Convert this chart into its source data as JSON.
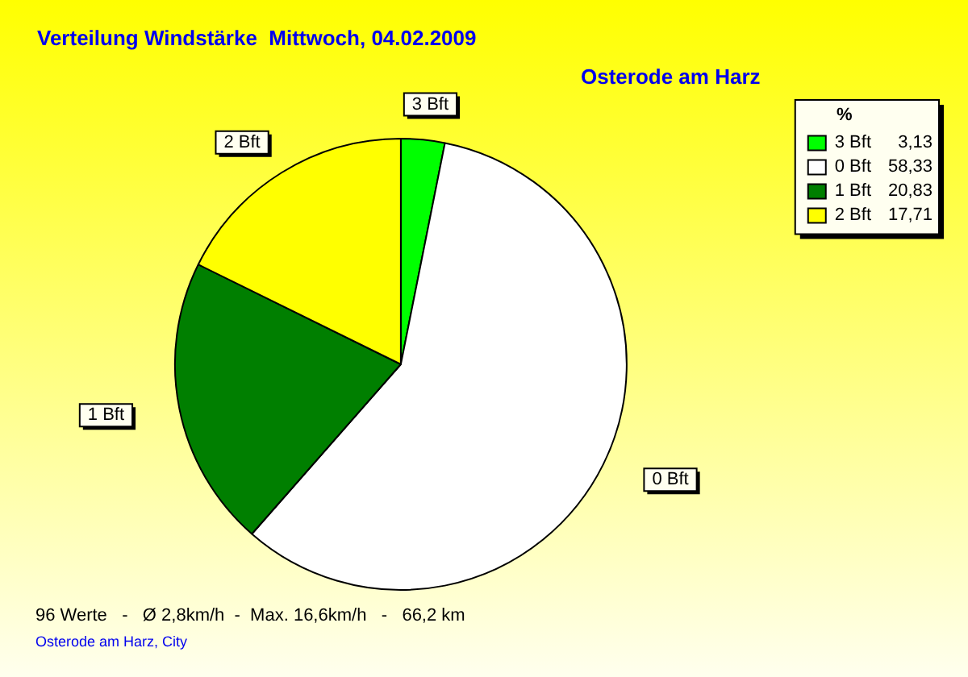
{
  "chart_data": {
    "type": "pie",
    "title": "Verteilung Windstärke  Mittwoch, 04.02.2009",
    "subtitle": "Osterode am Harz",
    "categories": [
      "3 Bft",
      "0 Bft",
      "1 Bft",
      "2 Bft"
    ],
    "values": [
      3.13,
      58.33,
      20.83,
      17.71
    ],
    "colors": [
      "#00ff00",
      "#ffffff",
      "#007f00",
      "#ffff00"
    ],
    "value_labels": [
      "3,13",
      "58,33",
      "20,83",
      "17,71"
    ],
    "legend": "top right",
    "legend_title": "%",
    "annotations": [
      "96 Werte   -   Ø 2,8km/h  -  Max. 16,6km/h   -   66,2 km",
      "Osterode am Harz, City"
    ]
  }
}
